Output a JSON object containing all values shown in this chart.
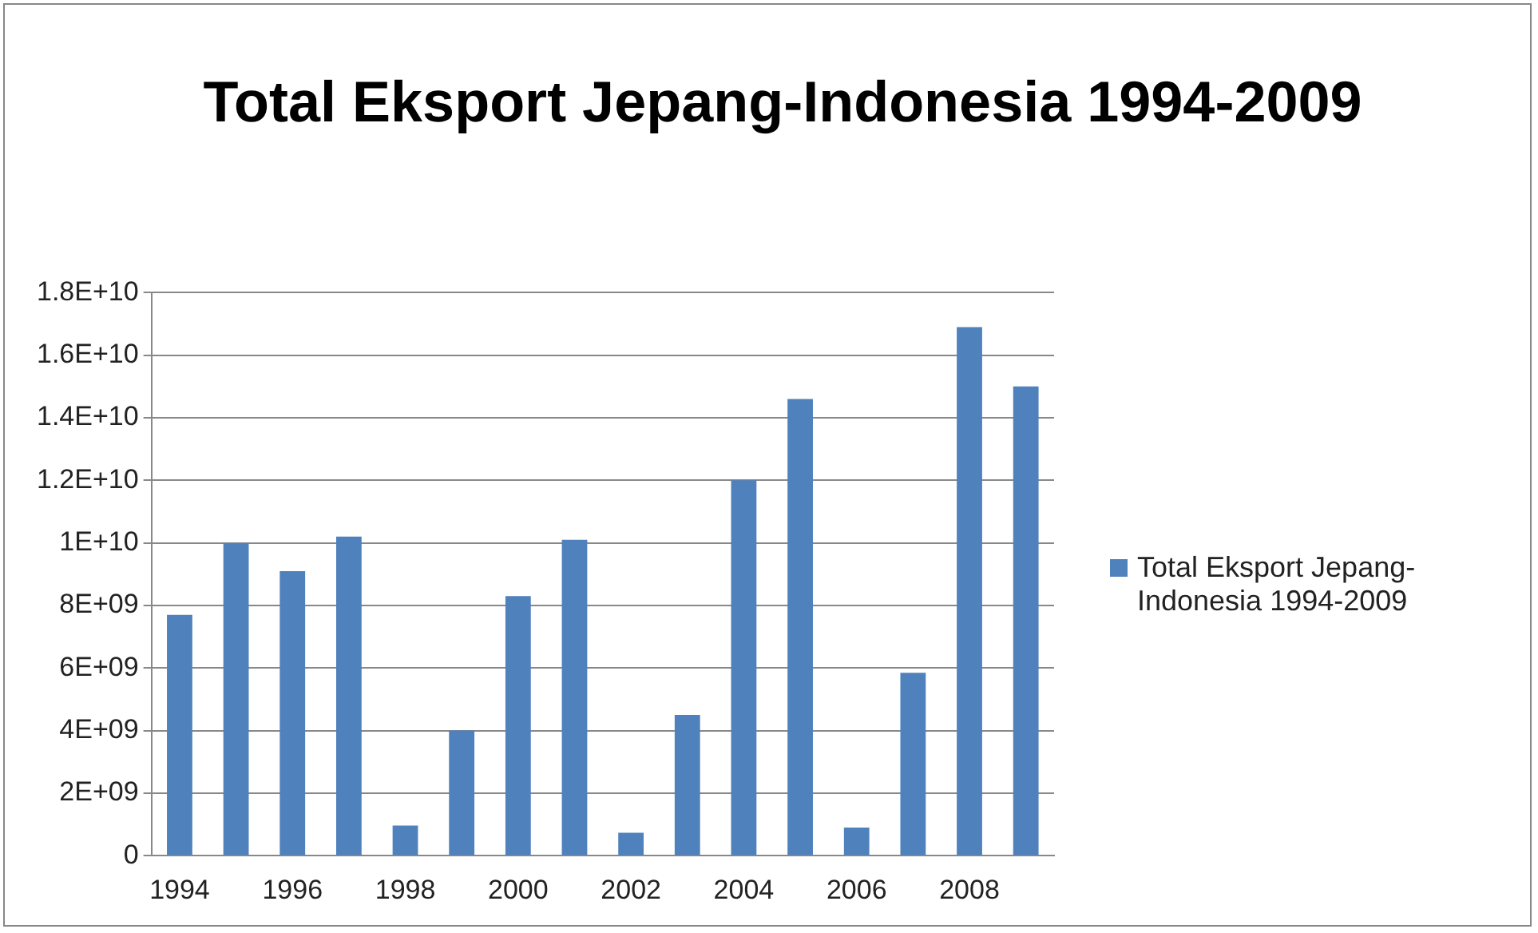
{
  "chart_data": {
    "type": "bar",
    "title": "Total Eksport Jepang-Indonesia 1994-2009",
    "categories": [
      "1994",
      null,
      "1996",
      null,
      "1998",
      null,
      "2000",
      null,
      "2002",
      null,
      "2004",
      null,
      "2006",
      null,
      "2008",
      null
    ],
    "series": [
      {
        "name": "Total Eksport Jepang-Indonesia 1994-2009",
        "color": "#4f81bd",
        "values": [
          7700000000,
          10000000000,
          9100000000,
          10200000000,
          960000000,
          4000000000,
          8300000000,
          10100000000,
          730000000,
          4500000000,
          12000000000,
          14600000000,
          900000000,
          5850000000,
          16900000000,
          15000000000
        ]
      }
    ],
    "ylim": [
      0,
      18000000000
    ],
    "yticks": [
      0,
      {
        "value": 2000000000,
        "label": "2E+09"
      },
      {
        "value": 4000000000,
        "label": "4E+09"
      },
      {
        "value": 6000000000,
        "label": "6E+09"
      },
      {
        "value": 8000000000,
        "label": "8E+09"
      },
      {
        "value": 10000000000,
        "label": "1E+10"
      },
      {
        "value": 12000000000,
        "label": "1.2E+10"
      },
      {
        "value": 14000000000,
        "label": "1.4E+10"
      },
      {
        "value": 16000000000,
        "label": "1.6E+10"
      },
      {
        "value": 18000000000,
        "label": "1.8E+10"
      }
    ],
    "grid": "y",
    "legend": "right"
  }
}
